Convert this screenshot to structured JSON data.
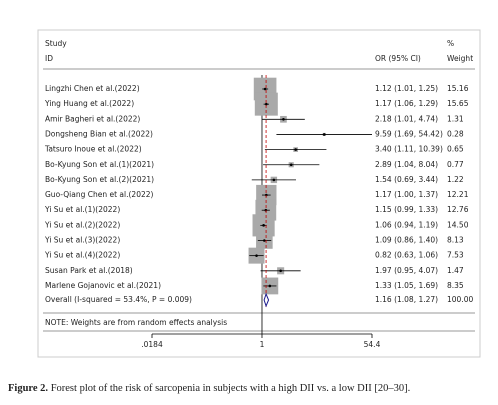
{
  "chart_data": {
    "type": "forest",
    "header_study": "Study",
    "header_id": "ID",
    "header_or": "OR (95% CI)",
    "header_pct": "%",
    "header_weight": "Weight",
    "categories": [
      "Lingzhi Chen et al.(2022)",
      "Ying Huang et al.(2022)",
      "Amir Bagheri et al.(2022)",
      "Dongsheng Bian et al.(2022)",
      "Tatsuro Inoue et al.(2022)",
      "Bo-Kyung Son et al.(1)(2021)",
      "Bo-Kyung Son et al.(2)(2021)",
      "Guo-Qiang Chen et al.(2022)",
      "Yi Su et al.(1)(2022)",
      "Yi Su et al.(2)(2022)",
      "Yi Su et al.(3)(2022)",
      "Yi Su et al.(4)(2022)",
      "Susan Park et al.(2018)",
      "Marlene Gojanovic et al.(2021)"
    ],
    "values": [
      1.12,
      1.17,
      2.18,
      9.59,
      3.4,
      2.89,
      1.54,
      1.17,
      1.15,
      1.06,
      1.09,
      0.82,
      1.97,
      1.33
    ],
    "lower": [
      1.01,
      1.06,
      1.01,
      1.69,
      1.11,
      1.04,
      0.69,
      1.0,
      0.99,
      0.94,
      0.86,
      0.63,
      0.95,
      1.05
    ],
    "upper": [
      1.25,
      1.29,
      4.74,
      54.42,
      10.39,
      8.04,
      3.44,
      1.37,
      1.33,
      1.19,
      1.4,
      1.06,
      4.07,
      1.69
    ],
    "value_labels": [
      "1.12 (1.01, 1.25)",
      "1.17 (1.06, 1.29)",
      "2.18 (1.01, 4.74)",
      "9.59 (1.69, 54.42)",
      "3.40 (1.11, 10.39)",
      "2.89 (1.04, 8.04)",
      "1.54 (0.69, 3.44)",
      "1.17 (1.00, 1.37)",
      "1.15 (0.99, 1.33)",
      "1.06 (0.94, 1.19)",
      "1.09 (0.86, 1.40)",
      "0.82 (0.63, 1.06)",
      "1.97 (0.95, 4.07)",
      "1.33 (1.05, 1.69)"
    ],
    "weights": [
      15.16,
      15.65,
      1.31,
      0.28,
      0.65,
      0.77,
      1.22,
      12.21,
      12.76,
      14.5,
      8.13,
      7.53,
      1.47,
      8.35
    ],
    "weight_labels": [
      "15.16",
      "15.65",
      "1.31",
      "0.28",
      "0.65",
      "0.77",
      "1.22",
      "12.21",
      "12.76",
      "14.50",
      "8.13",
      "7.53",
      "1.47",
      "8.35"
    ],
    "overall_name": "Overall  (I-squared = 53.4%, P = 0.009)",
    "overall": 1.16,
    "overall_lower": 1.08,
    "overall_upper": 1.27,
    "overall_label": "1.16 (1.08, 1.27)",
    "overall_weight": 100,
    "overall_weight_label": "100.00",
    "note": "NOTE: Weights are from random effects analysis",
    "log_x": true,
    "xlim": [
      0.0184,
      54.4
    ],
    "xticks": [
      {
        "value": 0.0184,
        "label": ".0184"
      },
      1,
      {
        "value": 54.4,
        "label": "54.4"
      }
    ],
    "box_color": "#a9a9a9",
    "diamond_color": "#1a1a8c",
    "ref_line_color": "#c00000",
    "caption_label": "Figure 2.",
    "caption_text": "Forest plot of the risk of sarcopenia in subjects with a high DII vs. a low DII [20–30]."
  }
}
